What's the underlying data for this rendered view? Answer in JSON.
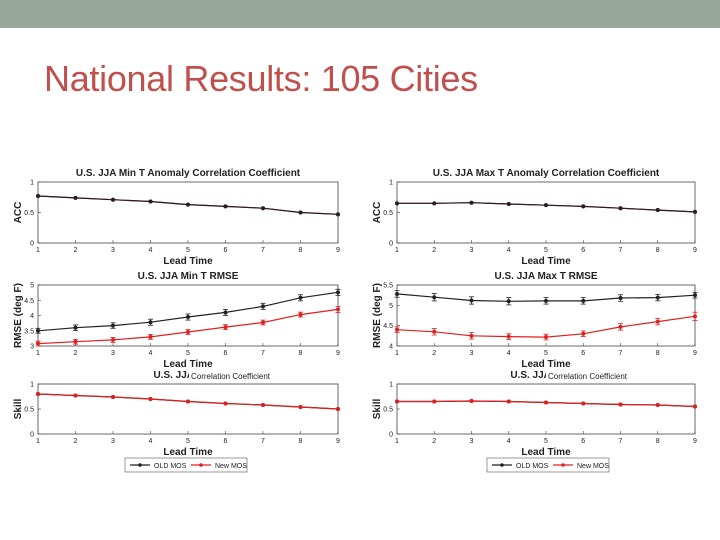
{
  "slide": {
    "title": "National Results: 105 Cities",
    "bar_color": "#97a79a",
    "title_color": "#c0504d"
  },
  "legend": {
    "old": "OLD MOS",
    "new": "New MOS"
  },
  "colors": {
    "old": "#222222",
    "new": "#e02020"
  },
  "overlay_text": "Correlation Coefficient",
  "chart_data": [
    {
      "type": "line",
      "title": "U.S. JJA Min T Anomaly Correlation Coefficient",
      "xlabel": "Lead Time",
      "ylabel": "ACC",
      "x": [
        1,
        2,
        3,
        4,
        5,
        6,
        7,
        8,
        9
      ],
      "xticks": [
        "1",
        "2",
        "3",
        "4",
        "5",
        "6",
        "7",
        "8",
        "9"
      ],
      "ylim": [
        0,
        1
      ],
      "yticks": [
        "0",
        "0.5",
        "1"
      ],
      "series": [
        {
          "name": "New MOS",
          "values": [
            0.77,
            0.74,
            0.71,
            0.68,
            0.63,
            0.6,
            0.57,
            0.5,
            0.47
          ]
        },
        {
          "name": "OLD MOS",
          "values": [
            0.77,
            0.74,
            0.71,
            0.68,
            0.63,
            0.6,
            0.57,
            0.5,
            0.47
          ]
        }
      ]
    },
    {
      "type": "line",
      "title": "U.S. JJA Max T Anomaly Correlation Coefficient",
      "xlabel": "Lead Time",
      "ylabel": "ACC",
      "x": [
        1,
        2,
        3,
        4,
        5,
        6,
        7,
        8,
        9
      ],
      "xticks": [
        "1",
        "2",
        "3",
        "4",
        "5",
        "6",
        "7",
        "8",
        "9"
      ],
      "ylim": [
        0,
        1
      ],
      "yticks": [
        "0",
        "0.5",
        "1"
      ],
      "series": [
        {
          "name": "New MOS",
          "values": [
            0.65,
            0.65,
            0.66,
            0.64,
            0.62,
            0.6,
            0.57,
            0.54,
            0.51
          ]
        },
        {
          "name": "OLD MOS",
          "values": [
            0.65,
            0.65,
            0.66,
            0.64,
            0.62,
            0.6,
            0.57,
            0.54,
            0.51
          ]
        }
      ]
    },
    {
      "type": "line",
      "title": "U.S. JJA Min T RMSE",
      "xlabel": "Lead Time",
      "ylabel": "RMSE (deg F)",
      "x": [
        1,
        2,
        3,
        4,
        5,
        6,
        7,
        8,
        9
      ],
      "xticks": [
        "1",
        "2",
        "3",
        "4",
        "5",
        "6",
        "7",
        "8",
        "9"
      ],
      "ylim": [
        3,
        5
      ],
      "yticks": [
        "3",
        "3.5",
        "4",
        "4.5",
        "5"
      ],
      "series": [
        {
          "name": "OLD MOS",
          "values": [
            3.5,
            3.6,
            3.67,
            3.78,
            3.95,
            4.1,
            4.3,
            4.58,
            4.76
          ],
          "errors": [
            0.08,
            0.09,
            0.09,
            0.1,
            0.1,
            0.1,
            0.1,
            0.1,
            0.1
          ]
        },
        {
          "name": "New MOS",
          "values": [
            3.08,
            3.14,
            3.2,
            3.3,
            3.46,
            3.62,
            3.77,
            4.03,
            4.2
          ],
          "errors": [
            0.08,
            0.08,
            0.08,
            0.08,
            0.08,
            0.08,
            0.08,
            0.08,
            0.1
          ]
        }
      ]
    },
    {
      "type": "line",
      "title": "U.S. JJA Max T RMSE",
      "xlabel": "Lead Time",
      "ylabel": "RMSE (deg F)",
      "x": [
        1,
        2,
        3,
        4,
        5,
        6,
        7,
        8,
        9
      ],
      "xticks": [
        "1",
        "2",
        "3",
        "4",
        "5",
        "6",
        "7",
        "8",
        "9"
      ],
      "ylim": [
        4,
        5.5
      ],
      "yticks": [
        "4",
        "4.5",
        "5",
        "5.5"
      ],
      "series": [
        {
          "name": "OLD MOS",
          "values": [
            5.28,
            5.2,
            5.12,
            5.1,
            5.11,
            5.11,
            5.18,
            5.19,
            5.25
          ],
          "errors": [
            0.08,
            0.09,
            0.09,
            0.09,
            0.08,
            0.08,
            0.08,
            0.08,
            0.07
          ]
        },
        {
          "name": "New MOS",
          "values": [
            4.4,
            4.35,
            4.25,
            4.23,
            4.22,
            4.3,
            4.47,
            4.6,
            4.73
          ],
          "errors": [
            0.07,
            0.08,
            0.08,
            0.07,
            0.07,
            0.07,
            0.08,
            0.08,
            0.1
          ]
        }
      ]
    },
    {
      "type": "line",
      "title": "U.S. JJA Min T",
      "xlabel": "Lead Time",
      "ylabel": "Skill",
      "x": [
        1,
        2,
        3,
        4,
        5,
        6,
        7,
        8,
        9
      ],
      "xticks": [
        "1",
        "2",
        "3",
        "4",
        "5",
        "6",
        "7",
        "8",
        "9"
      ],
      "ylim": [
        0,
        1
      ],
      "yticks": [
        "0",
        "0.5",
        "1"
      ],
      "series": [
        {
          "name": "OLD MOS",
          "values": [
            0.8,
            0.77,
            0.74,
            0.7,
            0.65,
            0.61,
            0.58,
            0.54,
            0.5
          ]
        },
        {
          "name": "New MOS",
          "values": [
            0.8,
            0.77,
            0.74,
            0.7,
            0.65,
            0.61,
            0.58,
            0.54,
            0.5
          ]
        }
      ]
    },
    {
      "type": "line",
      "title": "U.S. JJA Max T",
      "xlabel": "Lead Time",
      "ylabel": "Skill",
      "x": [
        1,
        2,
        3,
        4,
        5,
        6,
        7,
        8,
        9
      ],
      "xticks": [
        "1",
        "2",
        "3",
        "4",
        "5",
        "6",
        "7",
        "8",
        "9"
      ],
      "ylim": [
        0,
        1
      ],
      "yticks": [
        "0",
        "0.5",
        "1"
      ],
      "series": [
        {
          "name": "OLD MOS",
          "values": [
            0.65,
            0.65,
            0.66,
            0.65,
            0.63,
            0.61,
            0.59,
            0.58,
            0.55
          ]
        },
        {
          "name": "New MOS",
          "values": [
            0.65,
            0.65,
            0.66,
            0.65,
            0.63,
            0.61,
            0.59,
            0.58,
            0.55
          ]
        }
      ]
    }
  ]
}
